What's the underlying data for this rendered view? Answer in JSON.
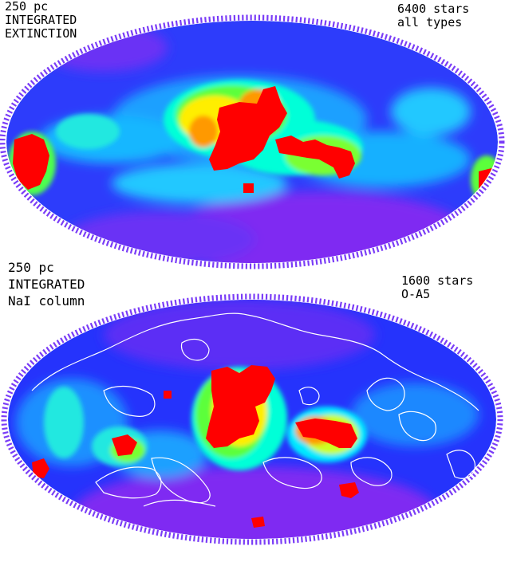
{
  "colors": {
    "background": "#ffffff",
    "scale": [
      "#8a1cf0",
      "#2a35ff",
      "#00bfff",
      "#00ffd0",
      "#33ff33",
      "#ffff00",
      "#ff9900",
      "#ff0000"
    ],
    "contour": "#ffffff"
  },
  "top_panel": {
    "left_label": [
      "250 pc",
      "INTEGRATED",
      "EXTINCTION"
    ],
    "right_label": [
      "6400 stars",
      "all types"
    ]
  },
  "bottom_panel": {
    "left_label": [
      "250 pc",
      "INTEGRATED",
      "NaI column"
    ],
    "right_label": [
      "1600 stars",
      "O-A5"
    ]
  }
}
